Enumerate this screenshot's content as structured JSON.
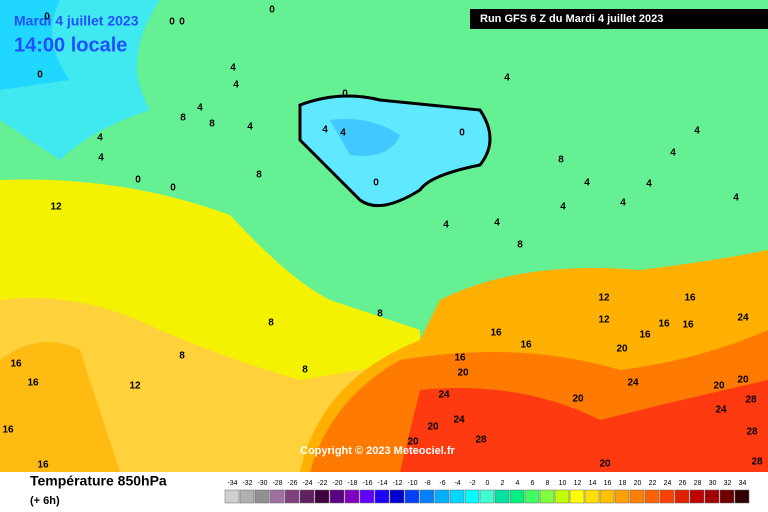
{
  "header": {
    "date": "Mardi 4 juillet 2023",
    "time": "14:00 locale",
    "run": "Run GFS 6 Z du Mardi 4 juillet 2023",
    "copyright": "Copyright © 2023 Meteociel.fr"
  },
  "footer": {
    "title": "Température 850hPa",
    "step": "(+ 6h)"
  },
  "map": {
    "contour_labels": [
      0,
      0,
      0,
      0,
      0,
      4,
      4,
      4,
      8,
      8,
      4,
      4,
      4,
      0,
      0,
      8,
      12,
      0,
      4,
      4,
      0,
      0,
      4,
      4,
      4,
      8,
      4,
      4,
      4,
      4,
      4,
      4,
      4,
      8,
      8,
      8,
      8,
      8,
      16,
      16,
      12,
      16,
      16,
      16,
      16,
      16,
      12,
      16,
      16,
      16,
      12,
      16,
      20,
      20,
      24,
      24,
      20,
      28,
      20,
      20,
      24,
      20,
      24,
      28,
      20,
      28,
      28,
      20,
      24
    ]
  },
  "legend": {
    "items": [
      {
        "value": -34,
        "color": "#d0d0d0"
      },
      {
        "value": -32,
        "color": "#b0b0b0"
      },
      {
        "value": -30,
        "color": "#909090"
      },
      {
        "value": -28,
        "color": "#a070a0"
      },
      {
        "value": -26,
        "color": "#804080"
      },
      {
        "value": -24,
        "color": "#602060"
      },
      {
        "value": -22,
        "color": "#400040"
      },
      {
        "value": -20,
        "color": "#5a0080"
      },
      {
        "value": -18,
        "color": "#8000c0"
      },
      {
        "value": -16,
        "color": "#6000ff"
      },
      {
        "value": -14,
        "color": "#2000ff"
      },
      {
        "value": -12,
        "color": "#0000d0"
      },
      {
        "value": -10,
        "color": "#0040ff"
      },
      {
        "value": -8,
        "color": "#0080ff"
      },
      {
        "value": -6,
        "color": "#00b0ff"
      },
      {
        "value": -4,
        "color": "#00d8ff"
      },
      {
        "value": -2,
        "color": "#00ffff"
      },
      {
        "value": 0,
        "color": "#40ffd0"
      },
      {
        "value": 2,
        "color": "#00e0a0"
      },
      {
        "value": 4,
        "color": "#00f080"
      },
      {
        "value": 6,
        "color": "#40ff60"
      },
      {
        "value": 8,
        "color": "#80ff40"
      },
      {
        "value": 10,
        "color": "#c0ff00"
      },
      {
        "value": 12,
        "color": "#ffff00"
      },
      {
        "value": 14,
        "color": "#ffe000"
      },
      {
        "value": 16,
        "color": "#ffc000"
      },
      {
        "value": 18,
        "color": "#ffa000"
      },
      {
        "value": 20,
        "color": "#ff8000"
      },
      {
        "value": 22,
        "color": "#ff6000"
      },
      {
        "value": 24,
        "color": "#ff4000"
      },
      {
        "value": 26,
        "color": "#e02000"
      },
      {
        "value": 28,
        "color": "#c00000"
      },
      {
        "value": 30,
        "color": "#a00000"
      },
      {
        "value": 32,
        "color": "#700000"
      },
      {
        "value": 34,
        "color": "#300000"
      }
    ]
  }
}
